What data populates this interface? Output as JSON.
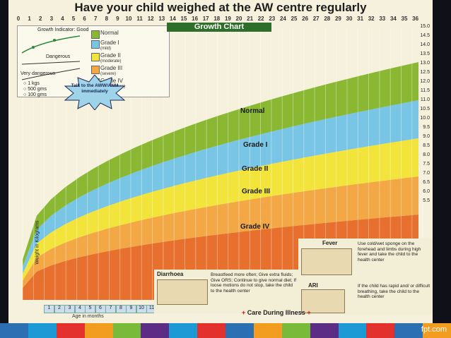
{
  "title": "Have your child weighed at the AW centre regularly",
  "chart_title": "Growth Chart",
  "top_ages": [
    "0",
    "1",
    "2",
    "3",
    "4",
    "5",
    "6",
    "7",
    "8",
    "9",
    "10",
    "11",
    "12",
    "13",
    "14",
    "15",
    "16",
    "17",
    "18",
    "19",
    "20",
    "21",
    "22",
    "23",
    "24",
    "25",
    "26",
    "27",
    "28",
    "29",
    "30",
    "31",
    "32",
    "33",
    "34",
    "35",
    "36"
  ],
  "right_weights": [
    "15.0",
    "14.5",
    "14.0",
    "13.5",
    "13.0",
    "12.5",
    "12.0",
    "11.5",
    "11.0",
    "10.5",
    "10.0",
    "9.5",
    "9.0",
    "8.5",
    "8.0",
    "7.5",
    "7.0",
    "6.5",
    "6.0",
    "5.5"
  ],
  "legend": {
    "curve_keys": [
      "Growth Indicator: Good",
      "Dangerous",
      "Very dangerous"
    ],
    "weights": [
      "1 kgs",
      "500 gms",
      "100 gms"
    ],
    "grades": [
      {
        "label": "Normal",
        "sub": "",
        "color": "#8ab833"
      },
      {
        "label": "Grade I",
        "sub": "(mild)",
        "color": "#78c5e6"
      },
      {
        "label": "Grade II",
        "sub": "(moderate)",
        "color": "#f2e43a"
      },
      {
        "label": "Grade III",
        "sub": "(severe)",
        "color": "#f3a845"
      },
      {
        "label": "Grade IV",
        "sub": "(very severe)",
        "color": "#e8702e"
      }
    ],
    "callout": "Talk to the AWW/ANM immediately"
  },
  "band_labels": [
    "Normal",
    "Grade I",
    "Grade II",
    "Grade III",
    "Grade IV"
  ],
  "months": [
    "1",
    "2",
    "3",
    "4",
    "5",
    "6",
    "7",
    "8",
    "9",
    "10",
    "11",
    "12"
  ],
  "age_label": "Age in months",
  "weight_axis_label": "Weight in Kilograms",
  "care": {
    "fever_title": "Fever",
    "fever_text": "Use cold/wet sponge on the forehead and limbs during high fever and take the child to the health center",
    "diarrhoea_title": "Diarrhoea",
    "diarrhoea_text": "Breastfeed more often; Give extra fluids; Give ORS; Continue to give normal diet; If loose motions do not stop, take the child to the health center",
    "ari_title": "ARI",
    "ari_text": "If the child has rapid and/ or difficult breathing, take the child to the health center",
    "footer": "Care During Illness"
  },
  "brand": "fpt.com",
  "footer_colors": [
    "#2d6fb3",
    "#1b9ad6",
    "#e3312d",
    "#f29d1f",
    "#7aba3a",
    "#5d2d86",
    "#1b9ad6",
    "#e3312d",
    "#2d6fb3",
    "#f29d1f",
    "#7aba3a",
    "#5d2d86",
    "#1b9ad6",
    "#e3312d",
    "#2d6fb3",
    "#f29d1f"
  ]
}
